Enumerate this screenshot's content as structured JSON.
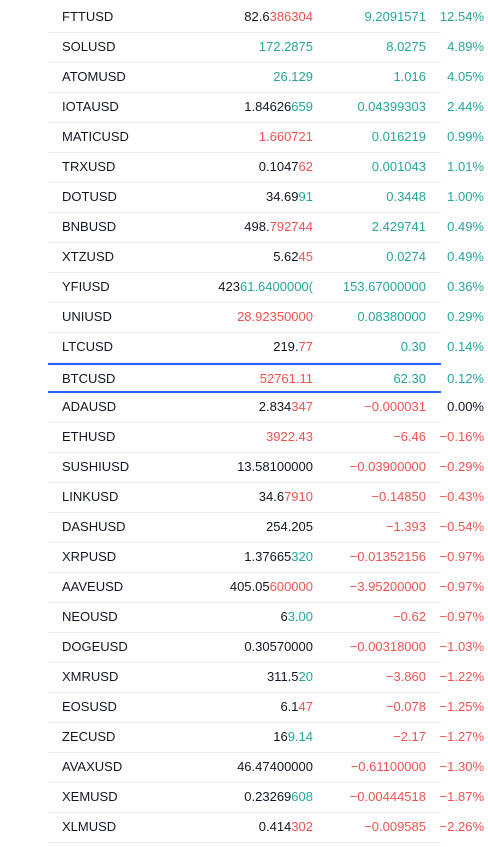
{
  "colors": {
    "up": "#26a69a",
    "down": "#ef5350",
    "neutral": "#131722",
    "pivot_border": "#2962ff"
  },
  "rows": [
    {
      "symbol": "FTTUSD",
      "last_a": "82.6",
      "last_b": "386304",
      "last_dir": "down",
      "change": "9.2091571",
      "chg_dir": "up",
      "pct": "12.54%",
      "pct_dir": "up"
    },
    {
      "symbol": "SOLUSD",
      "last_a": "",
      "last_b": "172.2875",
      "last_dir": "up",
      "change": "8.0275",
      "chg_dir": "up",
      "pct": "4.89%",
      "pct_dir": "up"
    },
    {
      "symbol": "ATOMUSD",
      "last_a": "",
      "last_b": "26.129",
      "last_dir": "up",
      "change": "1.016",
      "chg_dir": "up",
      "pct": "4.05%",
      "pct_dir": "up"
    },
    {
      "symbol": "IOTAUSD",
      "last_a": "1.84626",
      "last_b": "659",
      "last_dir": "up",
      "change": "0.04399303",
      "chg_dir": "up",
      "pct": "2.44%",
      "pct_dir": "up"
    },
    {
      "symbol": "MATICUSD",
      "last_a": "",
      "last_b": "1.660721",
      "last_dir": "down",
      "change": "0.016219",
      "chg_dir": "up",
      "pct": "0.99%",
      "pct_dir": "up"
    },
    {
      "symbol": "TRXUSD",
      "last_a": "0.1047",
      "last_b": "62",
      "last_dir": "down",
      "change": "0.001043",
      "chg_dir": "up",
      "pct": "1.01%",
      "pct_dir": "up"
    },
    {
      "symbol": "DOTUSD",
      "last_a": "34.69",
      "last_b": "91",
      "last_dir": "up",
      "change": "0.3448",
      "chg_dir": "up",
      "pct": "1.00%",
      "pct_dir": "up"
    },
    {
      "symbol": "BNBUSD",
      "last_a": "498.",
      "last_b": "792744",
      "last_dir": "down",
      "change": "2.429741",
      "chg_dir": "up",
      "pct": "0.49%",
      "pct_dir": "up"
    },
    {
      "symbol": "XTZUSD",
      "last_a": "5.62",
      "last_b": "45",
      "last_dir": "down",
      "change": "0.0274",
      "chg_dir": "up",
      "pct": "0.49%",
      "pct_dir": "up"
    },
    {
      "symbol": "YFIUSD",
      "last_a": "423",
      "last_b": "61.6400000(",
      "last_dir": "up",
      "change": "153.67000000",
      "chg_dir": "up",
      "pct": "0.36%",
      "pct_dir": "up"
    },
    {
      "symbol": "UNIUSD",
      "last_a": "",
      "last_b": "28.92350000",
      "last_dir": "down",
      "change": "0.08380000",
      "chg_dir": "up",
      "pct": "0.29%",
      "pct_dir": "up"
    },
    {
      "symbol": "LTCUSD",
      "last_a": "219.",
      "last_b": "77",
      "last_dir": "down",
      "change": "0.30",
      "chg_dir": "up",
      "pct": "0.14%",
      "pct_dir": "up"
    },
    {
      "symbol": "BTCUSD",
      "last_a": "",
      "last_b": "52761.11",
      "last_dir": "down",
      "change": "62.30",
      "chg_dir": "up",
      "pct": "0.12%",
      "pct_dir": "up",
      "pivot": true
    },
    {
      "symbol": "ADAUSD",
      "last_a": "2.834",
      "last_b": "347",
      "last_dir": "down",
      "change": "−0.000031",
      "chg_dir": "down",
      "pct": "0.00%",
      "pct_dir": "neutral"
    },
    {
      "symbol": "ETHUSD",
      "last_a": "",
      "last_b": "3922.43",
      "last_dir": "down",
      "change": "−6.46",
      "chg_dir": "down",
      "pct": "−0.16%",
      "pct_dir": "down"
    },
    {
      "symbol": "SUSHIUSD",
      "last_a": "13.58100000",
      "last_b": "",
      "last_dir": "neutral",
      "change": "−0.03900000",
      "chg_dir": "down",
      "pct": "−0.29%",
      "pct_dir": "down"
    },
    {
      "symbol": "LINKUSD",
      "last_a": "34.6",
      "last_b": "7910",
      "last_dir": "down",
      "change": "−0.14850",
      "chg_dir": "down",
      "pct": "−0.43%",
      "pct_dir": "down"
    },
    {
      "symbol": "DASHUSD",
      "last_a": "254.205",
      "last_b": "",
      "last_dir": "neutral",
      "change": "−1.393",
      "chg_dir": "down",
      "pct": "−0.54%",
      "pct_dir": "down"
    },
    {
      "symbol": "XRPUSD",
      "last_a": "1.37665",
      "last_b": "320",
      "last_dir": "up",
      "change": "−0.01352156",
      "chg_dir": "down",
      "pct": "−0.97%",
      "pct_dir": "down"
    },
    {
      "symbol": "AAVEUSD",
      "last_a": "405.05",
      "last_b": "600000",
      "last_dir": "down",
      "change": "−3.95200000",
      "chg_dir": "down",
      "pct": "−0.97%",
      "pct_dir": "down"
    },
    {
      "symbol": "NEOUSD",
      "last_a": "6",
      "last_b": "3.00",
      "last_dir": "up",
      "change": "−0.62",
      "chg_dir": "down",
      "pct": "−0.97%",
      "pct_dir": "down"
    },
    {
      "symbol": "DOGEUSD",
      "last_a": "0.30570000",
      "last_b": "",
      "last_dir": "neutral",
      "change": "−0.00318000",
      "chg_dir": "down",
      "pct": "−1.03%",
      "pct_dir": "down"
    },
    {
      "symbol": "XMRUSD",
      "last_a": "311.5",
      "last_b": "20",
      "last_dir": "up",
      "change": "−3.860",
      "chg_dir": "down",
      "pct": "−1.22%",
      "pct_dir": "down"
    },
    {
      "symbol": "EOSUSD",
      "last_a": "6.1",
      "last_b": "47",
      "last_dir": "down",
      "change": "−0.078",
      "chg_dir": "down",
      "pct": "−1.25%",
      "pct_dir": "down"
    },
    {
      "symbol": "ZECUSD",
      "last_a": "16",
      "last_b": "9.14",
      "last_dir": "up",
      "change": "−2.17",
      "chg_dir": "down",
      "pct": "−1.27%",
      "pct_dir": "down"
    },
    {
      "symbol": "AVAXUSD",
      "last_a": "46.47400000",
      "last_b": "",
      "last_dir": "neutral",
      "change": "−0.61100000",
      "chg_dir": "down",
      "pct": "−1.30%",
      "pct_dir": "down"
    },
    {
      "symbol": "XEMUSD",
      "last_a": "0.23269",
      "last_b": "608",
      "last_dir": "up",
      "change": "−0.00444518",
      "chg_dir": "down",
      "pct": "−1.87%",
      "pct_dir": "down"
    },
    {
      "symbol": "XLMUSD",
      "last_a": "0.414",
      "last_b": "302",
      "last_dir": "down",
      "change": "−0.009585",
      "chg_dir": "down",
      "pct": "−2.26%",
      "pct_dir": "down"
    }
  ]
}
